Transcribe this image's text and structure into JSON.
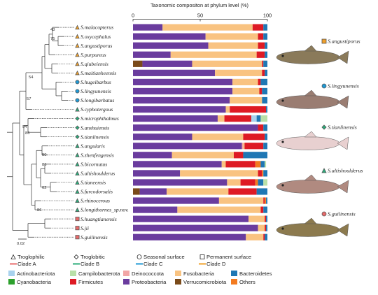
{
  "chart_data": {
    "type": "bar",
    "orientation": "horizontal",
    "stacked": true,
    "title": "Taxonomic compositon at phylum level (%)",
    "x_ticks": [
      "0",
      "50",
      "100"
    ],
    "xlim": [
      0,
      100
    ],
    "scale_bar_label": "0.02",
    "bootstrap_labels": [
      "43",
      "75",
      "54",
      "57",
      "94",
      "86",
      "90",
      "86",
      "62",
      "86"
    ],
    "species": [
      {
        "name": "S.malacopterus",
        "group": "Troglophilic",
        "clade": "D"
      },
      {
        "name": "S.oxycephalus",
        "group": "Troglophilic",
        "clade": "D"
      },
      {
        "name": "S.angustiporus",
        "group": "Troglophilic",
        "clade": "D"
      },
      {
        "name": "S.purpureus",
        "group": "Troglophilic",
        "clade": "D"
      },
      {
        "name": "S.qiubeiensis",
        "group": "Troglophilic",
        "clade": "D"
      },
      {
        "name": "S.maitianheensis",
        "group": "Troglophilic",
        "clade": "D"
      },
      {
        "name": "S.hugeibarbus",
        "group": "Seasonal surface",
        "clade": "C"
      },
      {
        "name": "S.lingyunensis",
        "group": "Seasonal surface",
        "clade": "C"
      },
      {
        "name": "S.longibarbatus",
        "group": "Seasonal surface",
        "clade": "C"
      },
      {
        "name": "S.cyphotergous",
        "group": "Troglophilic",
        "clade": "B"
      },
      {
        "name": "S.microphthalmus",
        "group": "Troglobitic",
        "clade": "B"
      },
      {
        "name": "S.anshuiensis",
        "group": "Troglobitic",
        "clade": "B"
      },
      {
        "name": "S.tianlinensis",
        "group": "Troglobitic",
        "clade": "B"
      },
      {
        "name": "S.angularis",
        "group": "Troglophilic",
        "clade": "B"
      },
      {
        "name": "S.zhenfengensis",
        "group": "Troglophilic",
        "clade": "B"
      },
      {
        "name": "S.bicornutus",
        "group": "Troglophilic",
        "clade": "B"
      },
      {
        "name": "S.altishoulderus",
        "group": "Troglophilic",
        "clade": "B"
      },
      {
        "name": "S.tianeensis",
        "group": "Troglophilic",
        "clade": "B"
      },
      {
        "name": "S.furcodorsalis",
        "group": "Troglophilic",
        "clade": "B"
      },
      {
        "name": "S.rhinocerous",
        "group": "Troglophilic",
        "clade": "B"
      },
      {
        "name": "S.longithornes_sp.nov.",
        "group": "Troglophilic",
        "clade": "B"
      },
      {
        "name": "S.huangtianensis",
        "group": "Permanent surface",
        "clade": "A"
      },
      {
        "name": "S.jii",
        "group": "Permanent surface",
        "clade": "A"
      },
      {
        "name": "S.guilinensis",
        "group": "Permanent surface",
        "clade": "A"
      }
    ],
    "phyla": [
      "Verrucomicrobiota",
      "Proteobacteria",
      "Deinococcota",
      "Fusobacteria",
      "Firmicutes",
      "Cyanobacteria",
      "Actinobacteriota",
      "Others",
      "Bacteroidetes",
      "Campilobacterota"
    ],
    "series": [
      {
        "name": "Verrucomicrobiota",
        "values": [
          0,
          0,
          0,
          0,
          7,
          0,
          0,
          0,
          0,
          0,
          0,
          0,
          0,
          0,
          0,
          0,
          0,
          0,
          5,
          0,
          0,
          0,
          0,
          0
        ]
      },
      {
        "name": "Proteobacteria",
        "values": [
          22,
          54,
          56,
          28,
          37,
          61,
          74,
          74,
          72,
          69,
          63,
          93,
          44,
          81,
          29,
          66,
          35,
          70,
          20,
          64,
          33,
          86,
          93,
          84
        ]
      },
      {
        "name": "Deinococcota",
        "values": [
          0,
          0,
          0,
          0,
          0,
          0,
          0,
          0,
          0,
          0,
          0,
          0,
          0,
          1,
          0,
          0,
          0,
          0,
          0,
          0,
          0,
          0,
          0,
          0
        ]
      },
      {
        "name": "Fusobacteria",
        "values": [
          67,
          39,
          37,
          64,
          52,
          35,
          19,
          20,
          24,
          3,
          5,
          0,
          38,
          1,
          46,
          3,
          58,
          10,
          46,
          33,
          62,
          12,
          5,
          13
        ]
      },
      {
        "name": "Firmicutes",
        "values": [
          8,
          4,
          5,
          6,
          1,
          2,
          2,
          2,
          0,
          27,
          20,
          4,
          16,
          14,
          7,
          22,
          3,
          11,
          21,
          1,
          2,
          1,
          1,
          1
        ]
      },
      {
        "name": "Cyanobacteria",
        "values": [
          0,
          0,
          0,
          0,
          0,
          0,
          0,
          0,
          0,
          0,
          0,
          0,
          0,
          0,
          0,
          0,
          0,
          0,
          0,
          0,
          0,
          0,
          0,
          0
        ]
      },
      {
        "name": "Actinobacteriota",
        "values": [
          0,
          0,
          0,
          0,
          0,
          0,
          0,
          0,
          0,
          0,
          4,
          0,
          0,
          0,
          0,
          0,
          0,
          0,
          0,
          0,
          0,
          0,
          0,
          0
        ]
      },
      {
        "name": "Others",
        "values": [
          0,
          0,
          0,
          0,
          0,
          0,
          0,
          0,
          0,
          0,
          0,
          0,
          0,
          0,
          0,
          4,
          1,
          2,
          0,
          1,
          0,
          0,
          0,
          0
        ]
      },
      {
        "name": "Bacteroidetes",
        "values": [
          3,
          3,
          2,
          2,
          3,
          2,
          5,
          4,
          4,
          1,
          3,
          3,
          2,
          3,
          18,
          3,
          3,
          4,
          8,
          1,
          3,
          1,
          1,
          2
        ]
      },
      {
        "name": "Campilobacterota",
        "values": [
          0,
          0,
          0,
          0,
          0,
          0,
          0,
          0,
          0,
          0,
          5,
          0,
          0,
          0,
          0,
          1,
          0,
          3,
          0,
          0,
          0,
          0,
          0,
          0
        ]
      }
    ],
    "grid": false,
    "legend_position": "bottom"
  },
  "colors": {
    "Verrucomicrobiota": "#7a4a1a",
    "Proteobacteria": "#6a3c9e",
    "Deinococcota": "#f2a6a6",
    "Fusobacteria": "#f9c381",
    "Firmicutes": "#de1a24",
    "Cyanobacteria": "#2ca02c",
    "Actinobacteriota": "#a8d2ee",
    "Others": "#f37b20",
    "Bacteroidetes": "#1f77b4",
    "Campilobacterota": "#b9e0a8",
    "clade_A": "#e86b6b",
    "clade_B": "#2bab7a",
    "clade_C": "#1f9ad6",
    "clade_D": "#f0a02a",
    "tree": "#333333"
  },
  "legend": {
    "groups": [
      {
        "label": "Troglophilic",
        "icon": "triangle-icon"
      },
      {
        "label": "Troglobitic",
        "icon": "diamond-icon"
      },
      {
        "label": "Seasonal surface",
        "icon": "circle-icon"
      },
      {
        "label": "Permanent surface",
        "icon": "square-icon"
      }
    ],
    "clades": [
      {
        "label": "Clade A",
        "color": "#e86b6b"
      },
      {
        "label": "Clade B",
        "color": "#2bab7a"
      },
      {
        "label": "Clade C",
        "color": "#1f9ad6"
      },
      {
        "label": "Clade D",
        "color": "#f0a02a"
      }
    ],
    "phyla": [
      {
        "label": "Actinobacteriota",
        "color": "#a8d2ee"
      },
      {
        "label": "Campilobacterota",
        "color": "#b9e0a8"
      },
      {
        "label": "Deinococcota",
        "color": "#f2a6a6"
      },
      {
        "label": "Fusobacteria",
        "color": "#f9c381"
      },
      {
        "label": "Bacteroidetes",
        "color": "#1f77b4"
      },
      {
        "label": "Cyanobacteria",
        "color": "#2ca02c"
      },
      {
        "label": "Firmicutes",
        "color": "#de1a24"
      },
      {
        "label": "Proteobacteria",
        "color": "#6a3c9e"
      },
      {
        "label": "Verrucomicrobiota",
        "color": "#7a4a1a"
      },
      {
        "label": "Others",
        "color": "#f37b20"
      }
    ]
  },
  "fish": [
    {
      "name": "S.angustiporus",
      "marker": "square",
      "color": "#f0a02a"
    },
    {
      "name": "S.lingyunensis",
      "marker": "circle",
      "color": "#1f9ad6"
    },
    {
      "name": "S.tianlinensis",
      "marker": "diamond",
      "color": "#2bab7a"
    },
    {
      "name": "S.altishoulderus",
      "marker": "triangle",
      "color": "#2bab7a"
    },
    {
      "name": "S.guilinensis",
      "marker": "circle",
      "color": "#e86b6b"
    }
  ]
}
